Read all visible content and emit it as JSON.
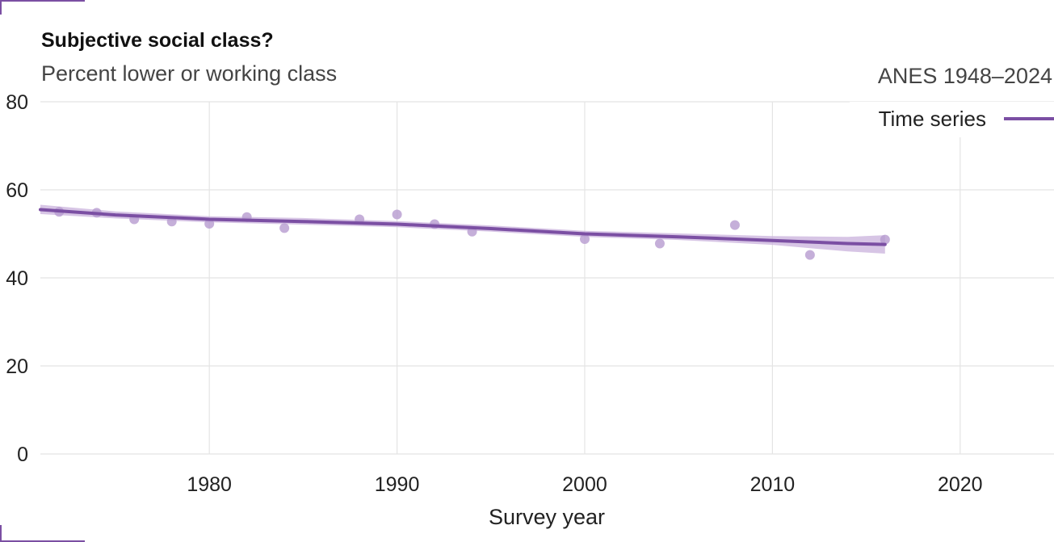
{
  "colors": {
    "accent": "#7b4fa3",
    "band": "#c9b1dc",
    "points": "#b79bcf",
    "grid": "#e4e4e4"
  },
  "chart_data": {
    "type": "scatter",
    "title": "Subjective social class?",
    "subtitle": "Percent lower or working class",
    "source": "ANES 1948–2024",
    "xlabel": "Survey year",
    "ylabel": "",
    "xlim": [
      1971,
      2025
    ],
    "ylim": [
      0,
      80
    ],
    "xticks": [
      1980,
      1990,
      2000,
      2010,
      2020
    ],
    "yticks": [
      0,
      20,
      40,
      60,
      80
    ],
    "grid": true,
    "legend": {
      "label": "Time series",
      "position": "top-right"
    },
    "series": [
      {
        "name": "Time series",
        "points": [
          [
            1972,
            55
          ],
          [
            1974,
            54.8
          ],
          [
            1976,
            53.3
          ],
          [
            1978,
            52.8
          ],
          [
            1980,
            52.3
          ],
          [
            1982,
            53.8
          ],
          [
            1984,
            51.3
          ],
          [
            1988,
            53.3
          ],
          [
            1990,
            54.4
          ],
          [
            1992,
            52.2
          ],
          [
            1994,
            50.5
          ],
          [
            2000,
            48.8
          ],
          [
            2004,
            47.8
          ],
          [
            2008,
            52
          ],
          [
            2012,
            45.2
          ],
          [
            2016,
            48.7
          ]
        ],
        "trend": [
          [
            1971,
            55.5
          ],
          [
            1975,
            54.3
          ],
          [
            1980,
            53.3
          ],
          [
            1985,
            52.8
          ],
          [
            1990,
            52.2
          ],
          [
            1995,
            51.2
          ],
          [
            2000,
            50
          ],
          [
            2005,
            49.3
          ],
          [
            2010,
            48.5
          ],
          [
            2014,
            47.8
          ],
          [
            2016,
            47.6
          ]
        ],
        "trend_band": [
          [
            1971,
            54.5,
            56.6
          ],
          [
            1975,
            53.5,
            55.1
          ],
          [
            1980,
            52.6,
            54.0
          ],
          [
            1985,
            52.1,
            53.6
          ],
          [
            1990,
            51.5,
            52.9
          ],
          [
            1995,
            50.5,
            51.9
          ],
          [
            2000,
            49.3,
            50.7
          ],
          [
            2005,
            48.6,
            50.1
          ],
          [
            2010,
            47.5,
            49.5
          ],
          [
            2014,
            46.0,
            49.3
          ],
          [
            2016,
            45.5,
            49.7
          ]
        ]
      }
    ]
  }
}
